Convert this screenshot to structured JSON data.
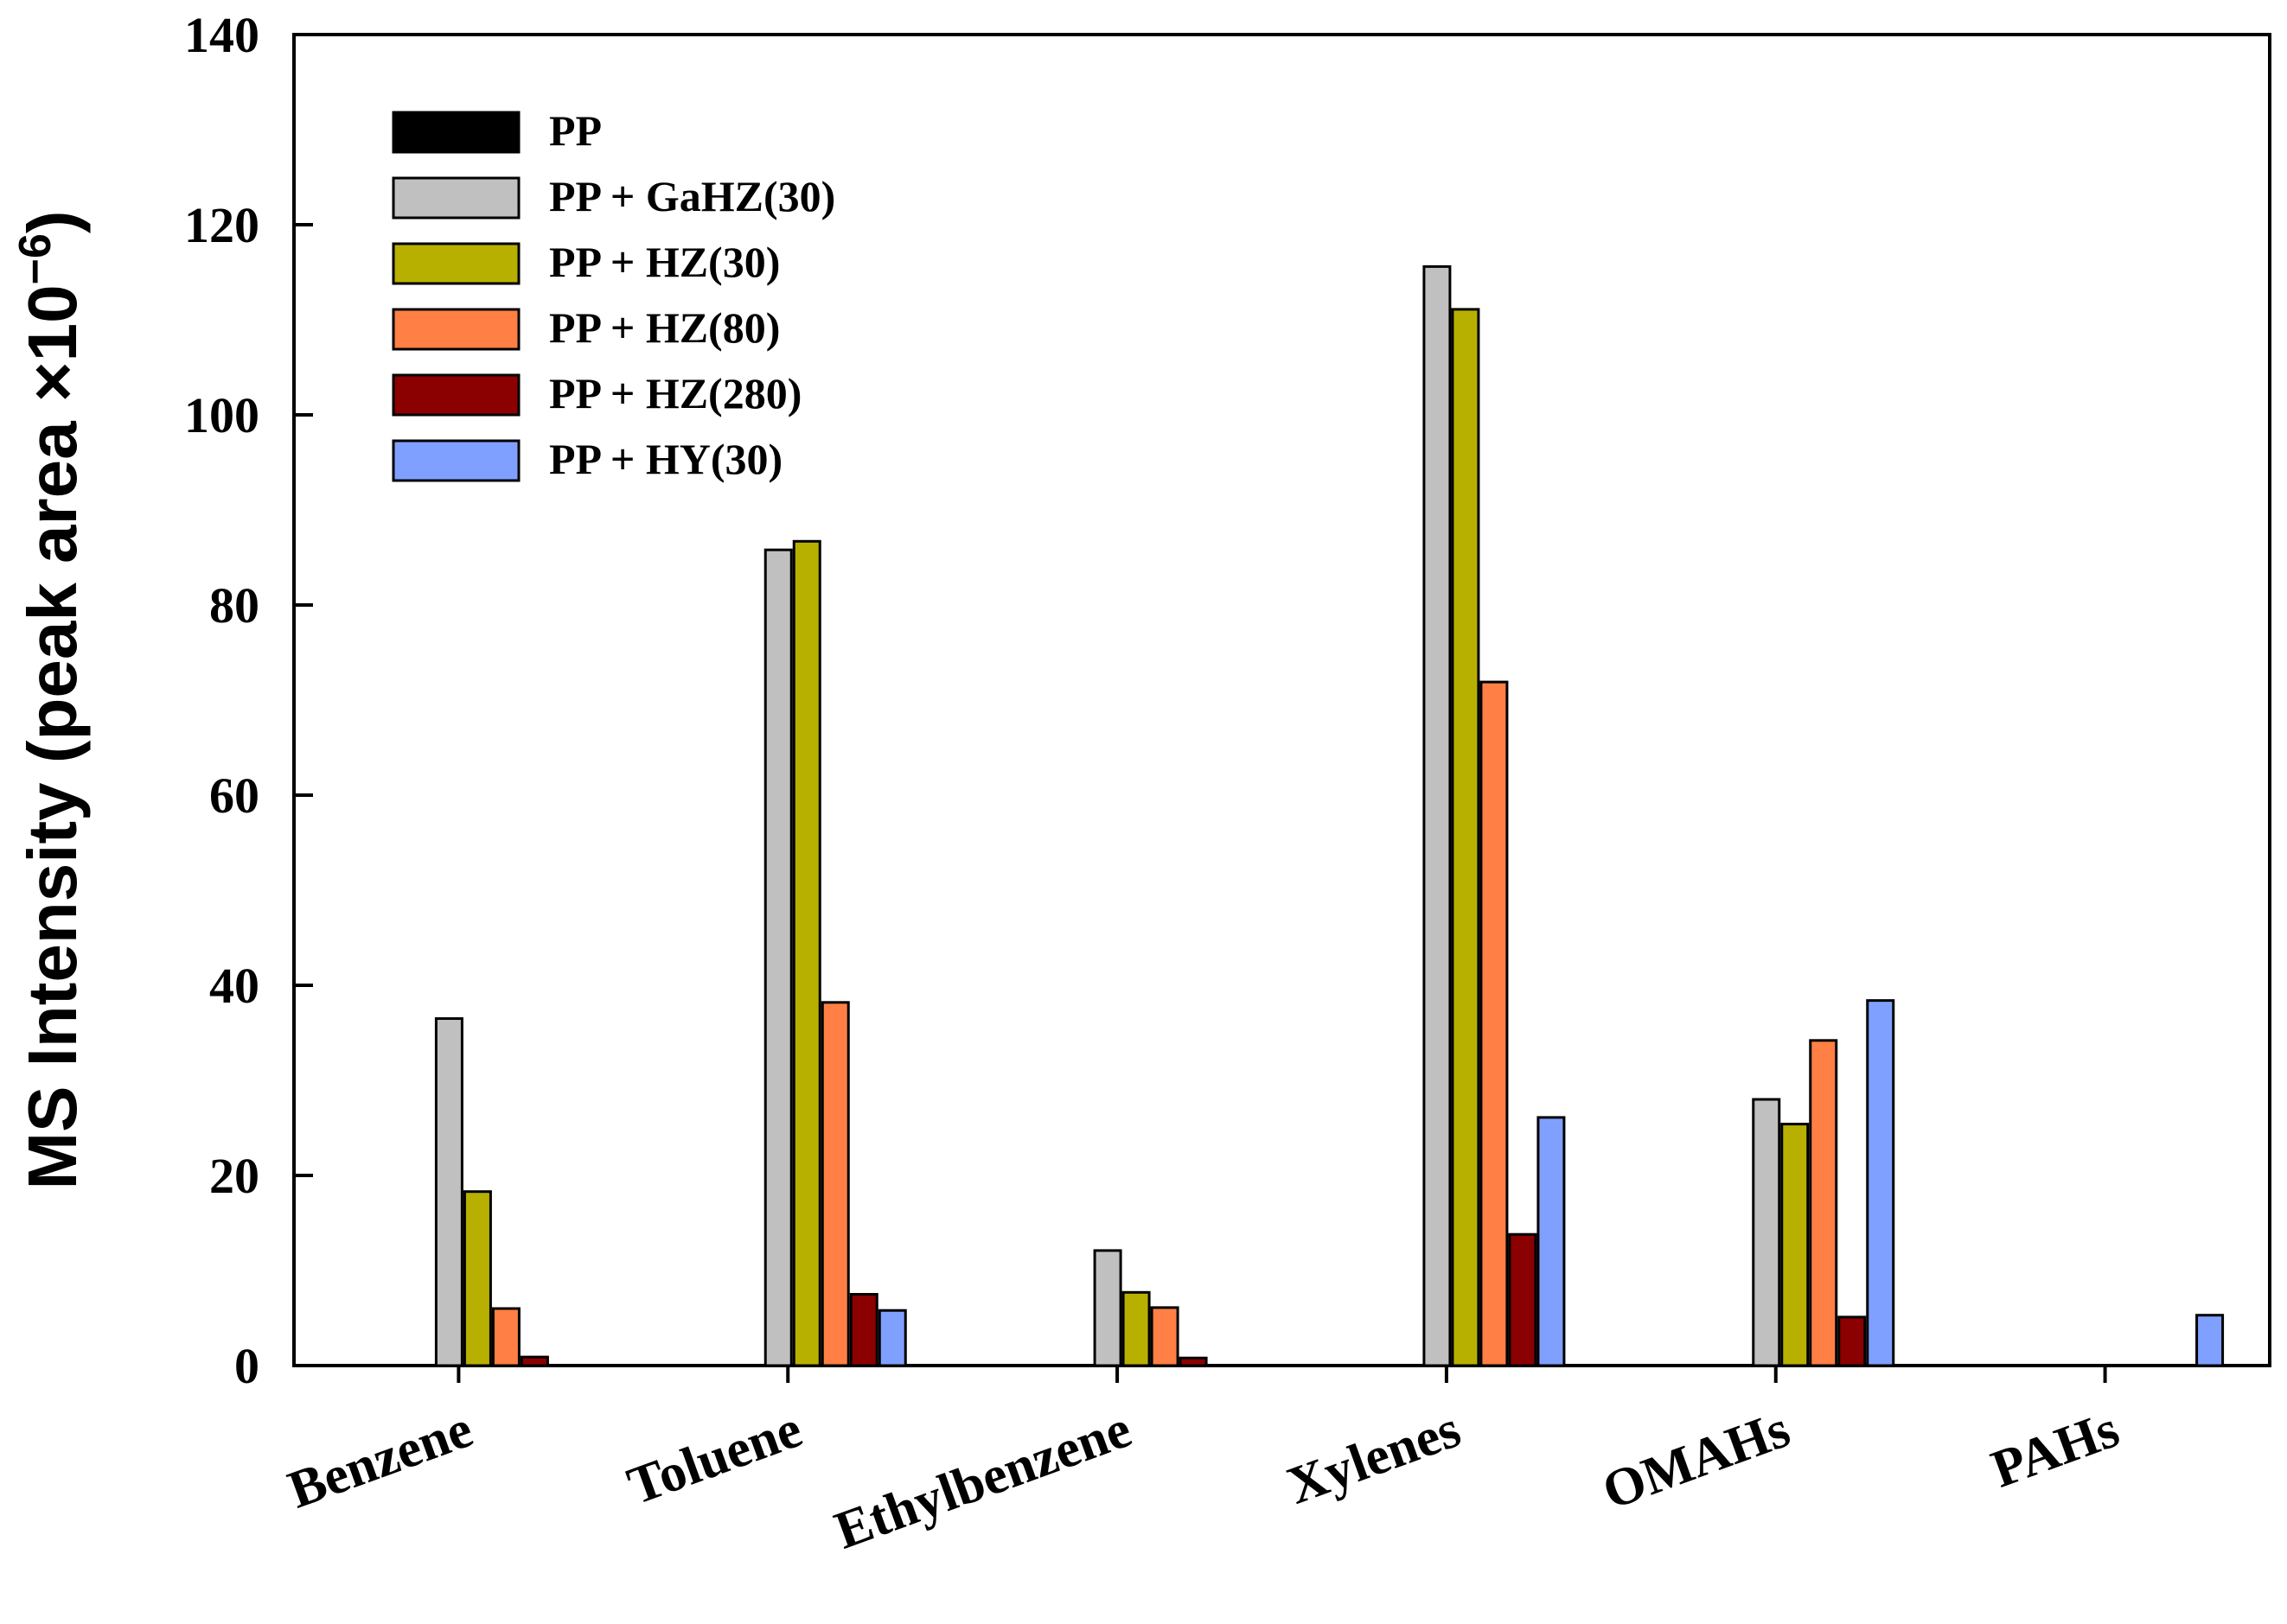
{
  "chart_data": {
    "type": "bar",
    "title": "",
    "xlabel": "",
    "ylabel": "MS Intensity (peak area ×10",
    "ylabel_exponent": "−6",
    "ylabel_close": ")",
    "ylim": [
      0,
      140
    ],
    "yticks": [
      "0",
      "20",
      "40",
      "60",
      "80",
      "100",
      "120",
      "140"
    ],
    "ytick_values": [
      0,
      20,
      40,
      60,
      80,
      100,
      120,
      140
    ],
    "grid": false,
    "legend_position": "top-left",
    "categories": [
      "Benzene",
      "Toluene",
      "Ethylbenzene",
      "Xylenes",
      "OMAHs",
      "PAHs"
    ],
    "series": [
      {
        "name": "PP",
        "color": "#000000",
        "values": [
          0,
          0,
          0,
          0,
          0,
          0
        ]
      },
      {
        "name": "PP + GaHZ(30)",
        "color": "#c0c0c0",
        "values": [
          36.5,
          85.8,
          12.1,
          115.6,
          28.0,
          0
        ]
      },
      {
        "name": "PP + HZ(30)",
        "color": "#b8b000",
        "values": [
          18.3,
          86.7,
          7.7,
          111.1,
          25.4,
          0
        ]
      },
      {
        "name": "PP + HZ(80)",
        "color": "#ff7f45",
        "values": [
          6.0,
          38.2,
          6.1,
          71.9,
          34.2,
          0
        ]
      },
      {
        "name": "PP + HZ(280)",
        "color": "#8b0000",
        "values": [
          0.9,
          7.5,
          0.8,
          13.8,
          5.1,
          0
        ]
      },
      {
        "name": "PP + HY(30)",
        "color": "#80a0ff",
        "values": [
          0,
          5.8,
          0,
          26.1,
          38.4,
          5.3
        ]
      }
    ]
  }
}
